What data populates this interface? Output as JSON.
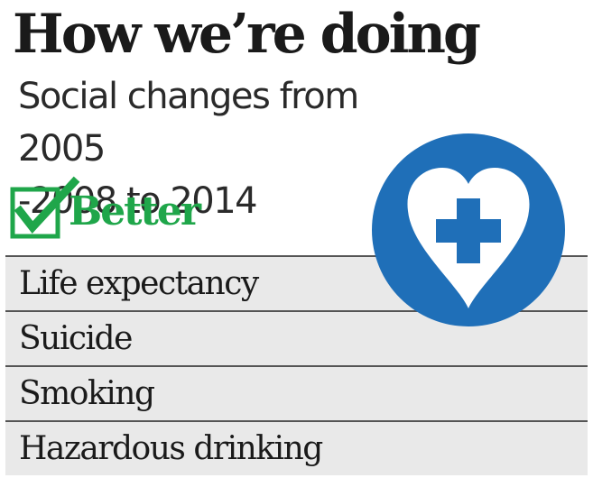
{
  "header": {
    "title": "How we’re doing",
    "subtitle_line1": "Social changes from 2005",
    "subtitle_line2": "-2008 to 2014"
  },
  "better": {
    "label": "Better",
    "icon": "check-icon",
    "color": "#1fa64a"
  },
  "badge": {
    "icon": "heart-plus-icon",
    "color": "#1f6fb8"
  },
  "items": [
    {
      "label": "Life expectancy"
    },
    {
      "label": "Suicide"
    },
    {
      "label": "Smoking"
    },
    {
      "label": "Hazardous drinking"
    }
  ]
}
